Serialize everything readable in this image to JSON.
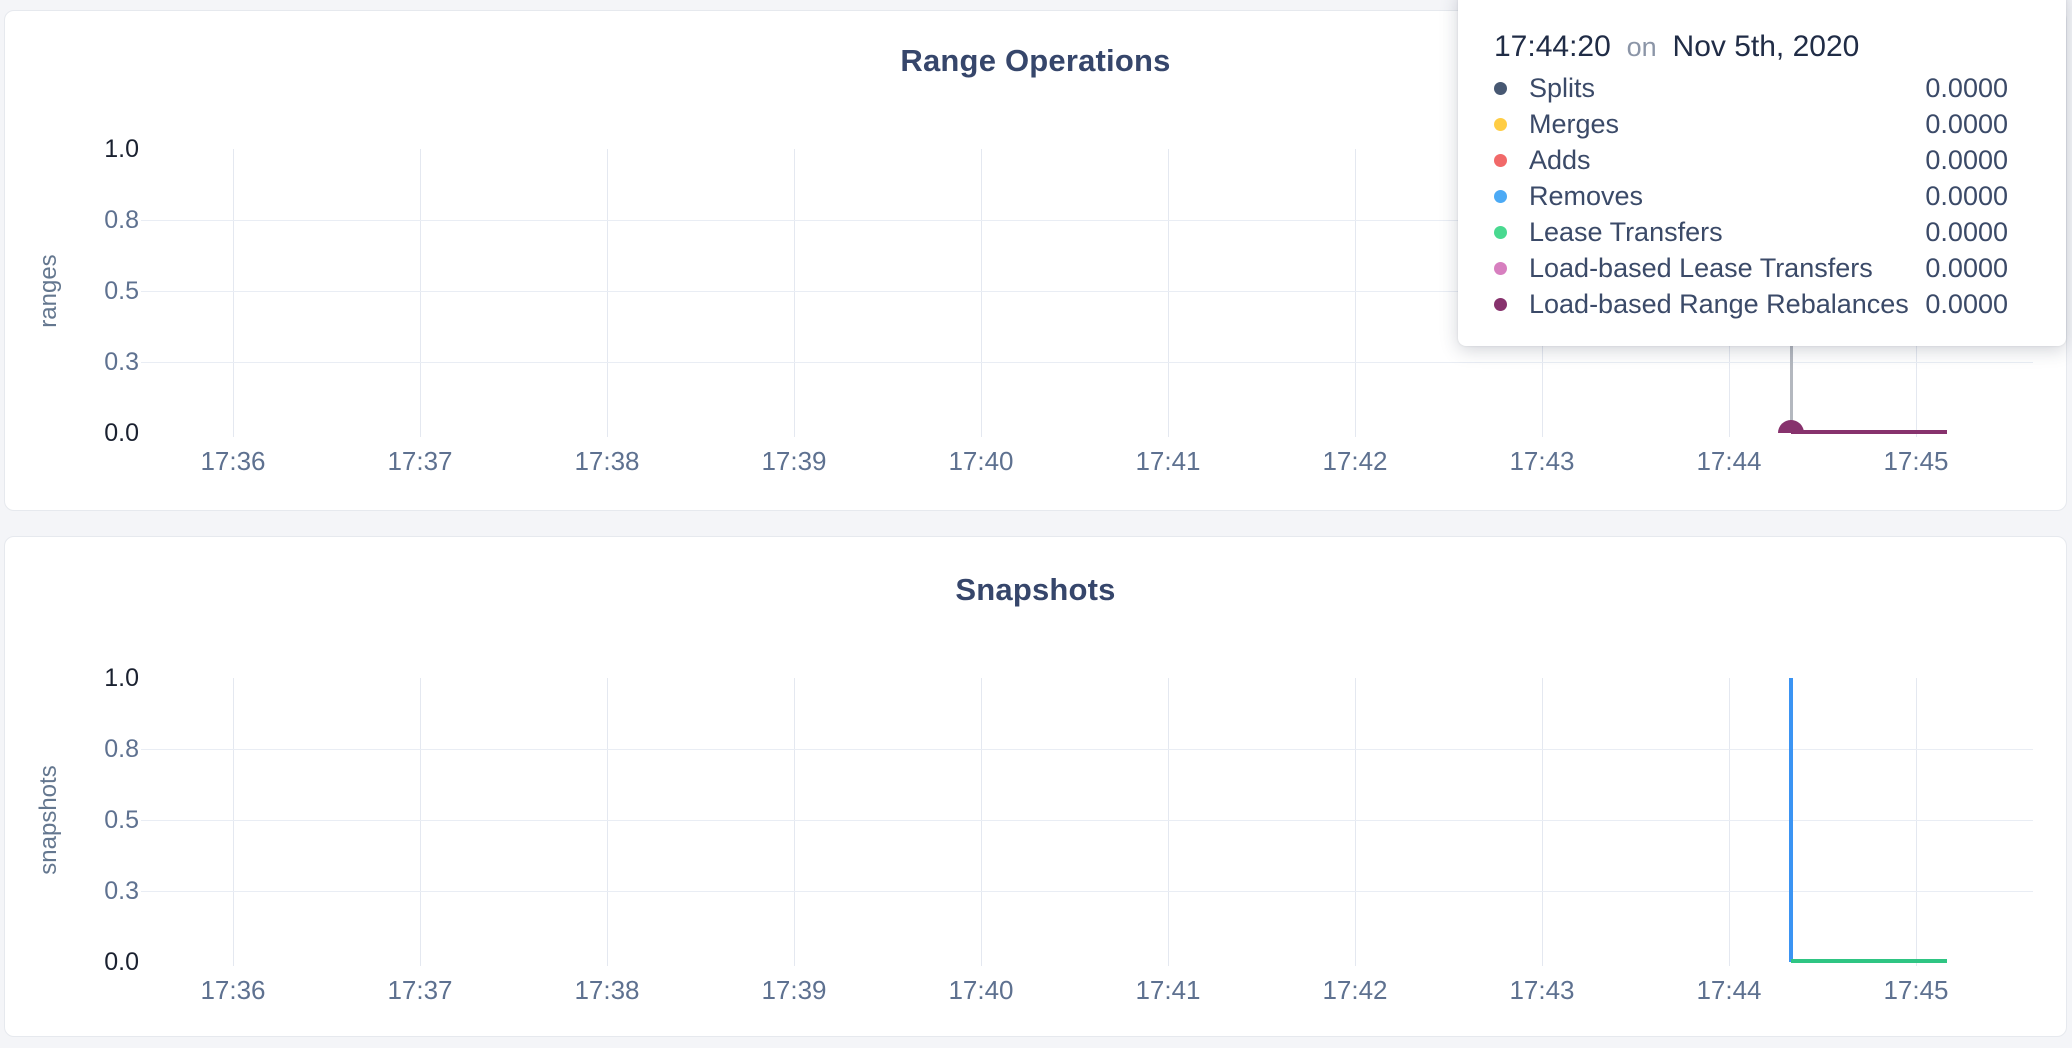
{
  "page": {
    "background_color": "#f4f5f8",
    "panel_border_color": "#e6e9ee",
    "title_color": "#36466b",
    "axis_label_color": "#5e7190"
  },
  "tooltip": {
    "time": "17:44:20",
    "on_word": "on",
    "date": "Nov 5th, 2020",
    "rows": [
      {
        "label": "Splits",
        "color": "#475872",
        "value": "0.0000"
      },
      {
        "label": "Merges",
        "color": "#FFCD44",
        "value": "0.0000"
      },
      {
        "label": "Adds",
        "color": "#F16969",
        "value": "0.0000"
      },
      {
        "label": "Removes",
        "color": "#4CAAF5",
        "value": "0.0000"
      },
      {
        "label": "Lease Transfers",
        "color": "#49D990",
        "value": "0.0000"
      },
      {
        "label": "Load-based Lease Transfers",
        "color": "#D77FBF",
        "value": "0.0000"
      },
      {
        "label": "Load-based Range Rebalances",
        "color": "#87326D",
        "value": "0.0000"
      }
    ]
  },
  "chart_data": [
    {
      "type": "line",
      "title": "Range Operations",
      "ylabel": "ranges",
      "x_start": "17:36",
      "x_tick_labels": [
        "17:36",
        "17:37",
        "17:38",
        "17:39",
        "17:40",
        "17:41",
        "17:42",
        "17:43",
        "17:44",
        "17:45"
      ],
      "y_tick_labels": [
        "1.0",
        "0.8",
        "0.5",
        "0.3",
        "0.0"
      ],
      "ylim": [
        0,
        1
      ],
      "grid": true,
      "legend_position": "tooltip-only",
      "hover": {
        "time": "17:44:20",
        "line_color": "#b4b8bf",
        "marker_color": "#87326D",
        "marker_value": 0
      },
      "series": [
        {
          "name": "Splits",
          "color": "#475872",
          "segments": [
            {
              "kind": "hline",
              "from": "17:44:20",
              "to": "17:45:10",
              "y": 0
            }
          ]
        },
        {
          "name": "Merges",
          "color": "#FFCD44",
          "segments": [
            {
              "kind": "hline",
              "from": "17:44:20",
              "to": "17:45:10",
              "y": 0
            }
          ]
        },
        {
          "name": "Adds",
          "color": "#F16969",
          "segments": [
            {
              "kind": "hline",
              "from": "17:44:20",
              "to": "17:45:10",
              "y": 0
            }
          ]
        },
        {
          "name": "Removes",
          "color": "#4CAAF5",
          "segments": [
            {
              "kind": "hline",
              "from": "17:44:20",
              "to": "17:45:10",
              "y": 0
            }
          ]
        },
        {
          "name": "Lease Transfers",
          "color": "#49D990",
          "segments": [
            {
              "kind": "hline",
              "from": "17:44:20",
              "to": "17:45:10",
              "y": 0
            }
          ]
        },
        {
          "name": "Load-based Lease Transfers",
          "color": "#D77FBF",
          "segments": [
            {
              "kind": "hline",
              "from": "17:44:20",
              "to": "17:45:10",
              "y": 0
            }
          ]
        },
        {
          "name": "Load-based Range Rebalances",
          "color": "#87326D",
          "segments": [
            {
              "kind": "hline",
              "from": "17:44:20",
              "to": "17:45:10",
              "y": 0
            }
          ]
        }
      ]
    },
    {
      "type": "line",
      "title": "Snapshots",
      "ylabel": "snapshots",
      "x_start": "17:36",
      "x_tick_labels": [
        "17:36",
        "17:37",
        "17:38",
        "17:39",
        "17:40",
        "17:41",
        "17:42",
        "17:43",
        "17:44",
        "17:45"
      ],
      "y_tick_labels": [
        "1.0",
        "0.8",
        "0.5",
        "0.3",
        "0.0"
      ],
      "ylim": [
        0,
        1
      ],
      "grid": true,
      "series": [
        {
          "name": "",
          "color": "#3B94F3",
          "segments": [
            {
              "kind": "vline",
              "at": "17:44:20",
              "y1": 0,
              "y2": 1
            }
          ]
        },
        {
          "name": "",
          "color": "#2FC583",
          "segments": [
            {
              "kind": "hline",
              "from": "17:44:20",
              "to": "17:45:10",
              "y": 0
            }
          ]
        }
      ]
    }
  ]
}
